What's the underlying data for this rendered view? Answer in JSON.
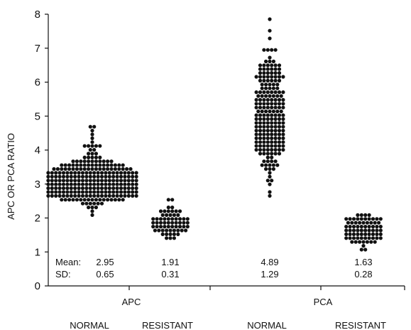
{
  "chart_data": {
    "type": "scatter",
    "subtype": "dot-plot (beeswarm)",
    "ylabel": "APC OR PCA RATIO",
    "ylim": [
      0,
      8
    ],
    "yticks": [
      0,
      1,
      2,
      3,
      4,
      5,
      6,
      7,
      8
    ],
    "grid": false,
    "groups": [
      {
        "group": "APC",
        "category": "NORMAL",
        "mean": "2.95",
        "sd": "0.65",
        "min": 2.1,
        "max": 5.1,
        "n_approx": 500
      },
      {
        "group": "APC",
        "category": "RESISTANT",
        "mean": "1.91",
        "sd": "0.31",
        "min": 1.1,
        "max": 2.7,
        "n_approx": 80
      },
      {
        "group": "PCA",
        "category": "NORMAL",
        "mean": "4.89",
        "sd": "1.29",
        "min": 2.6,
        "max": 8.0,
        "n_approx": 250
      },
      {
        "group": "PCA",
        "category": "RESISTANT",
        "mean": "1.63",
        "sd": "0.28",
        "min": 1.0,
        "max": 2.2,
        "n_approx": 100
      }
    ],
    "group_labels": [
      "APC",
      "PCA"
    ],
    "stat_labels": {
      "mean": "Mean:",
      "sd": "SD:"
    },
    "marker_color": "#111111"
  }
}
